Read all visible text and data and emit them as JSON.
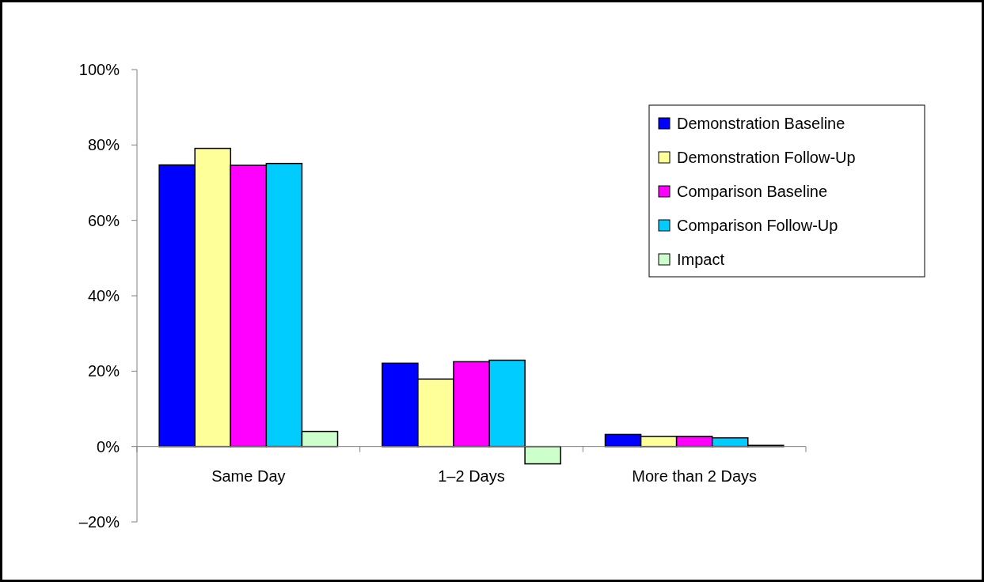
{
  "chart_data": {
    "type": "bar",
    "categories": [
      "Same Day",
      "1–2 Days",
      "More than 2 Days"
    ],
    "series": [
      {
        "name": "Demonstration Baseline",
        "color": "#0000ff",
        "values": [
          74.7,
          22.1,
          3.2
        ]
      },
      {
        "name": "Demonstration Follow-Up",
        "color": "#ffff99",
        "values": [
          79.1,
          17.9,
          2.7
        ]
      },
      {
        "name": "Comparison Baseline",
        "color": "#ff00ff",
        "values": [
          74.6,
          22.5,
          2.7
        ]
      },
      {
        "name": "Comparison Follow-Up",
        "color": "#00ccff",
        "values": [
          75.1,
          22.9,
          2.3
        ]
      },
      {
        "name": "Impact",
        "color": "#ccffcc",
        "values": [
          4.0,
          -4.6,
          0.3
        ]
      }
    ],
    "ylim": [
      -20,
      100
    ],
    "yticks": [
      {
        "value": -20,
        "label": "–20%"
      },
      {
        "value": 0,
        "label": "0%"
      },
      {
        "value": 20,
        "label": "20%"
      },
      {
        "value": 40,
        "label": "40%"
      },
      {
        "value": 60,
        "label": "60%"
      },
      {
        "value": 80,
        "label": "80%"
      },
      {
        "value": 100,
        "label": "100%"
      }
    ],
    "legend": "top right",
    "grid": false
  }
}
